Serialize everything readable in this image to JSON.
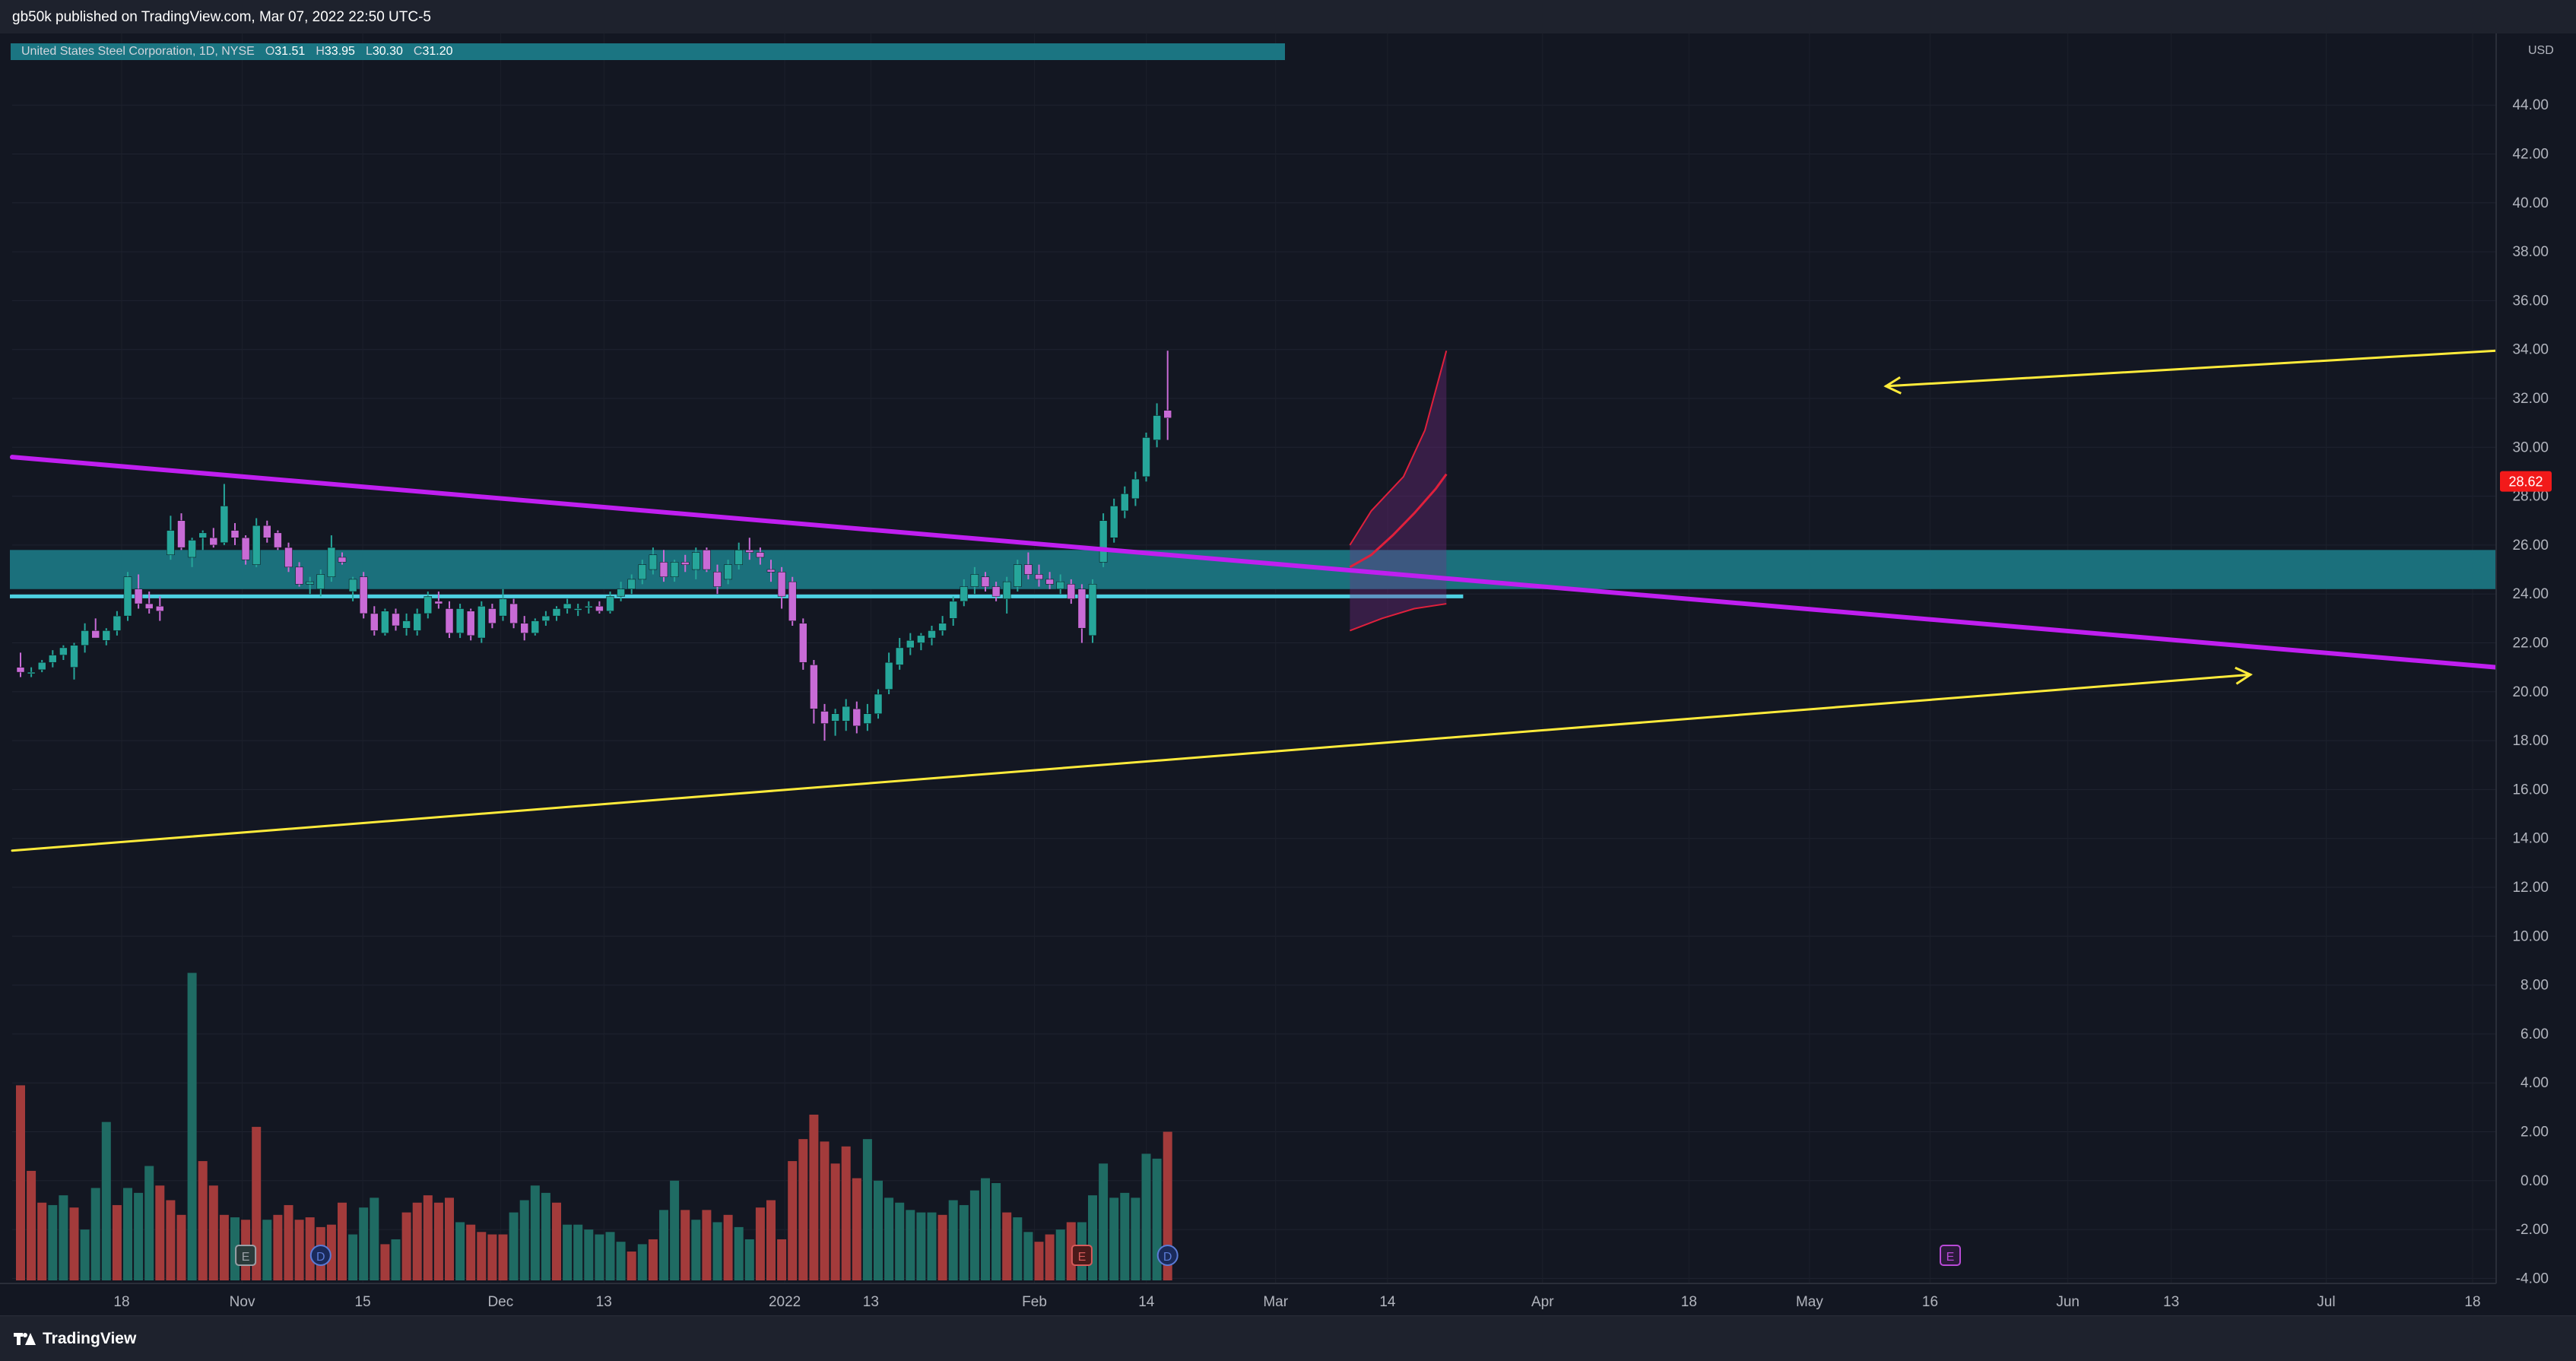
{
  "header": {
    "publish_info": "gb50k published on TradingView.com, Mar 07, 2022 22:50 UTC-5"
  },
  "legend": {
    "symbol": "United States Steel Corporation, 1D, NYSE",
    "o_label": "O",
    "o_value": "31.51",
    "h_label": "H",
    "h_value": "33.95",
    "l_label": "L",
    "l_value": "30.30",
    "c_label": "C",
    "c_value": "31.20"
  },
  "footer": {
    "brand": "TradingView"
  },
  "colors": {
    "background": "#131722",
    "up_candle": "#26a69a",
    "down_candle": "#c86bd6",
    "volume_up": "#1f6b63",
    "volume_down": "#a33b3b",
    "trendline_purple": "#c01ff0",
    "trendline_yellow": "#ffeb3b",
    "zone_teal": "#1b7582",
    "support_line": "#4dd0e1",
    "price_badge": "#f21a1a"
  },
  "chart_data": {
    "type": "candlestick",
    "currency_label": "USD",
    "y_ticks": [
      "44.00",
      "42.00",
      "40.00",
      "38.00",
      "36.00",
      "34.00",
      "32.00",
      "30.00",
      "28.00",
      "26.00",
      "24.00",
      "22.00",
      "20.00",
      "18.00",
      "16.00",
      "14.00",
      "12.00",
      "10.00",
      "8.00",
      "6.00",
      "4.00",
      "2.00",
      "0.00",
      "-2.00",
      "-4.00"
    ],
    "y_tick_values": [
      44,
      42,
      40,
      38,
      36,
      34,
      32,
      30,
      28,
      26,
      24,
      22,
      20,
      18,
      16,
      14,
      12,
      10,
      8,
      6,
      4,
      2,
      0,
      -2,
      -4
    ],
    "ylim": [
      -4.4,
      44.9
    ],
    "x_ticks": [
      {
        "label": "18",
        "date": "2021-10-18"
      },
      {
        "label": "Nov",
        "date": "2021-11-01"
      },
      {
        "label": "15",
        "date": "2021-11-15"
      },
      {
        "label": "Dec",
        "date": "2021-12-01"
      },
      {
        "label": "13",
        "date": "2021-12-13"
      },
      {
        "label": "2022",
        "date": "2022-01-03"
      },
      {
        "label": "13",
        "date": "2022-01-13"
      },
      {
        "label": "Feb",
        "date": "2022-02-01"
      },
      {
        "label": "14",
        "date": "2022-02-14"
      },
      {
        "label": "Mar",
        "date": "2022-03-01"
      },
      {
        "label": "14",
        "date": "2022-03-14"
      },
      {
        "label": "Apr",
        "date": "2022-04-01"
      },
      {
        "label": "18",
        "date": "2022-04-18"
      },
      {
        "label": "May",
        "date": "2022-05-02"
      },
      {
        "label": "16",
        "date": "2022-05-16"
      },
      {
        "label": "Jun",
        "date": "2022-06-01"
      },
      {
        "label": "13",
        "date": "2022-06-13"
      },
      {
        "label": "Jul",
        "date": "2022-07-01"
      },
      {
        "label": "18",
        "date": "2022-07-18"
      }
    ],
    "last_price": "28.62",
    "last_price_value": 28.62,
    "candles": [
      [
        21.0,
        21.6,
        20.6,
        20.8
      ],
      [
        20.8,
        21.0,
        20.6,
        20.8
      ],
      [
        20.9,
        21.3,
        20.8,
        21.2
      ],
      [
        21.2,
        21.7,
        21.0,
        21.5
      ],
      [
        21.5,
        21.9,
        21.3,
        21.8
      ],
      [
        21.0,
        22.0,
        20.5,
        21.9
      ],
      [
        21.9,
        22.8,
        21.6,
        22.5
      ],
      [
        22.5,
        23.0,
        22.2,
        22.2
      ],
      [
        22.1,
        22.6,
        21.9,
        22.5
      ],
      [
        22.5,
        23.3,
        22.3,
        23.1
      ],
      [
        23.1,
        24.9,
        22.9,
        24.7
      ],
      [
        24.2,
        24.8,
        23.4,
        23.6
      ],
      [
        23.6,
        24.1,
        23.2,
        23.4
      ],
      [
        23.5,
        23.9,
        22.9,
        23.3
      ],
      [
        25.6,
        27.2,
        25.4,
        26.6
      ],
      [
        27.0,
        27.3,
        25.8,
        25.9
      ],
      [
        25.5,
        26.3,
        25.1,
        26.2
      ],
      [
        26.3,
        26.6,
        25.8,
        26.5
      ],
      [
        26.3,
        26.7,
        25.9,
        26.0
      ],
      [
        26.1,
        28.5,
        26.0,
        27.6
      ],
      [
        26.6,
        26.9,
        26.0,
        26.3
      ],
      [
        26.3,
        26.4,
        25.2,
        25.4
      ],
      [
        25.2,
        27.1,
        25.1,
        26.8
      ],
      [
        26.8,
        27.0,
        26.1,
        26.3
      ],
      [
        26.5,
        26.6,
        25.8,
        25.9
      ],
      [
        25.9,
        26.1,
        24.9,
        25.1
      ],
      [
        25.1,
        25.3,
        24.3,
        24.4
      ],
      [
        24.4,
        24.7,
        24.0,
        24.5
      ],
      [
        24.2,
        25.0,
        23.9,
        24.8
      ],
      [
        24.7,
        26.4,
        24.5,
        25.9
      ],
      [
        25.5,
        25.7,
        25.2,
        25.3
      ],
      [
        24.1,
        24.7,
        23.7,
        24.6
      ],
      [
        24.7,
        24.9,
        23.0,
        23.2
      ],
      [
        23.2,
        23.5,
        22.3,
        22.5
      ],
      [
        22.4,
        23.4,
        22.3,
        23.3
      ],
      [
        23.2,
        23.4,
        22.5,
        22.7
      ],
      [
        22.6,
        23.2,
        22.3,
        22.9
      ],
      [
        22.5,
        23.4,
        22.3,
        23.2
      ],
      [
        23.2,
        24.1,
        23.0,
        23.9
      ],
      [
        23.7,
        24.1,
        23.4,
        23.6
      ],
      [
        23.4,
        23.7,
        22.2,
        22.4
      ],
      [
        22.4,
        23.6,
        22.2,
        23.4
      ],
      [
        23.3,
        23.4,
        22.1,
        22.3
      ],
      [
        22.2,
        23.7,
        22.0,
        23.5
      ],
      [
        23.4,
        23.6,
        22.6,
        22.8
      ],
      [
        23.1,
        24.2,
        22.9,
        23.8
      ],
      [
        23.6,
        23.8,
        22.6,
        22.8
      ],
      [
        22.8,
        23.1,
        22.1,
        22.4
      ],
      [
        22.4,
        23.0,
        22.3,
        22.9
      ],
      [
        22.9,
        23.3,
        22.7,
        23.1
      ],
      [
        23.1,
        23.5,
        22.9,
        23.4
      ],
      [
        23.4,
        23.8,
        23.2,
        23.6
      ],
      [
        23.4,
        23.6,
        23.1,
        23.4
      ],
      [
        23.5,
        23.7,
        23.2,
        23.5
      ],
      [
        23.5,
        23.7,
        23.2,
        23.3
      ],
      [
        23.3,
        24.1,
        23.2,
        23.9
      ],
      [
        23.9,
        24.5,
        23.7,
        24.2
      ],
      [
        24.2,
        24.8,
        24.0,
        24.6
      ],
      [
        24.6,
        25.4,
        24.4,
        25.2
      ],
      [
        25.0,
        25.9,
        24.8,
        25.6
      ],
      [
        25.3,
        25.8,
        24.5,
        24.7
      ],
      [
        24.7,
        25.4,
        24.5,
        25.3
      ],
      [
        25.3,
        25.6,
        24.9,
        25.2
      ],
      [
        25.0,
        25.9,
        24.6,
        25.7
      ],
      [
        25.8,
        25.9,
        24.9,
        25.0
      ],
      [
        24.9,
        25.2,
        24.0,
        24.3
      ],
      [
        24.6,
        25.4,
        24.4,
        25.2
      ],
      [
        25.2,
        26.1,
        25.0,
        25.8
      ],
      [
        25.8,
        26.3,
        25.4,
        25.7
      ],
      [
        25.7,
        25.9,
        25.2,
        25.5
      ],
      [
        25.0,
        25.4,
        24.5,
        24.9
      ],
      [
        24.9,
        25.1,
        23.4,
        23.9
      ],
      [
        24.5,
        24.7,
        22.7,
        22.9
      ],
      [
        22.8,
        23.0,
        20.9,
        21.2
      ],
      [
        21.1,
        21.3,
        18.7,
        19.3
      ],
      [
        19.2,
        19.5,
        18.0,
        18.7
      ],
      [
        18.8,
        19.3,
        18.2,
        19.1
      ],
      [
        18.8,
        19.7,
        18.4,
        19.4
      ],
      [
        19.3,
        19.6,
        18.3,
        18.6
      ],
      [
        18.7,
        19.5,
        18.4,
        19.1
      ],
      [
        19.1,
        20.1,
        18.9,
        19.9
      ],
      [
        20.1,
        21.6,
        19.9,
        21.2
      ],
      [
        21.1,
        22.2,
        20.9,
        21.8
      ],
      [
        21.8,
        22.4,
        21.5,
        22.1
      ],
      [
        22.0,
        22.4,
        21.7,
        22.3
      ],
      [
        22.2,
        22.7,
        21.9,
        22.5
      ],
      [
        22.5,
        23.1,
        22.3,
        22.8
      ],
      [
        23.0,
        23.9,
        22.7,
        23.7
      ],
      [
        23.7,
        24.6,
        23.5,
        24.3
      ],
      [
        24.3,
        25.1,
        24.0,
        24.8
      ],
      [
        24.7,
        24.9,
        24.1,
        24.3
      ],
      [
        24.3,
        24.5,
        23.7,
        23.9
      ],
      [
        23.8,
        24.7,
        23.2,
        24.5
      ],
      [
        24.3,
        25.4,
        24.1,
        25.2
      ],
      [
        25.2,
        25.7,
        24.6,
        24.8
      ],
      [
        24.8,
        25.2,
        24.3,
        24.6
      ],
      [
        24.6,
        24.9,
        24.2,
        24.4
      ],
      [
        24.2,
        24.8,
        24.0,
        24.5
      ],
      [
        24.4,
        24.6,
        23.6,
        23.8
      ],
      [
        24.2,
        24.4,
        22.0,
        22.6
      ],
      [
        22.3,
        24.6,
        22.0,
        24.4
      ],
      [
        25.3,
        27.3,
        25.1,
        27.0
      ],
      [
        26.3,
        27.9,
        26.1,
        27.6
      ],
      [
        27.4,
        28.4,
        27.1,
        28.1
      ],
      [
        27.9,
        29.0,
        27.6,
        28.7
      ],
      [
        28.8,
        30.6,
        28.6,
        30.4
      ],
      [
        30.3,
        31.8,
        30.0,
        31.3
      ],
      [
        31.51,
        33.95,
        30.3,
        31.2
      ]
    ],
    "volume": [
      [
        3.9,
        "d"
      ],
      [
        0.4,
        "d"
      ],
      [
        -0.9,
        "d"
      ],
      [
        -1.0,
        "u"
      ],
      [
        -0.6,
        "u"
      ],
      [
        -1.1,
        "d"
      ],
      [
        -2.0,
        "u"
      ],
      [
        -0.3,
        "u"
      ],
      [
        2.4,
        "u"
      ],
      [
        -1.0,
        "d"
      ],
      [
        -0.3,
        "u"
      ],
      [
        -0.5,
        "u"
      ],
      [
        0.6,
        "u"
      ],
      [
        -0.2,
        "d"
      ],
      [
        -0.8,
        "d"
      ],
      [
        -1.4,
        "d"
      ],
      [
        8.5,
        "u"
      ],
      [
        0.8,
        "d"
      ],
      [
        -0.2,
        "d"
      ],
      [
        -1.4,
        "d"
      ],
      [
        -1.5,
        "u"
      ],
      [
        -1.6,
        "d"
      ],
      [
        2.2,
        "d"
      ],
      [
        -1.6,
        "u"
      ],
      [
        -1.4,
        "d"
      ],
      [
        -1.0,
        "d"
      ],
      [
        -1.6,
        "d"
      ],
      [
        -1.5,
        "d"
      ],
      [
        -1.9,
        "d"
      ],
      [
        -1.8,
        "d"
      ],
      [
        -0.9,
        "d"
      ],
      [
        -2.2,
        "u"
      ],
      [
        -1.1,
        "u"
      ],
      [
        -0.7,
        "u"
      ],
      [
        -2.6,
        "d"
      ],
      [
        -2.4,
        "u"
      ],
      [
        -1.3,
        "d"
      ],
      [
        -0.9,
        "d"
      ],
      [
        -0.6,
        "d"
      ],
      [
        -0.9,
        "d"
      ],
      [
        -0.7,
        "d"
      ],
      [
        -1.7,
        "u"
      ],
      [
        -1.8,
        "d"
      ],
      [
        -2.1,
        "d"
      ],
      [
        -2.2,
        "d"
      ],
      [
        -2.2,
        "d"
      ],
      [
        -1.3,
        "u"
      ],
      [
        -0.8,
        "u"
      ],
      [
        -0.2,
        "u"
      ],
      [
        -0.5,
        "u"
      ],
      [
        -0.9,
        "d"
      ],
      [
        -1.8,
        "u"
      ],
      [
        -1.8,
        "u"
      ],
      [
        -2.0,
        "u"
      ],
      [
        -2.2,
        "u"
      ],
      [
        -2.1,
        "u"
      ],
      [
        -2.5,
        "u"
      ],
      [
        -2.9,
        "d"
      ],
      [
        -2.6,
        "u"
      ],
      [
        -2.4,
        "d"
      ],
      [
        -1.2,
        "u"
      ],
      [
        0.0,
        "u"
      ],
      [
        -1.2,
        "d"
      ],
      [
        -1.6,
        "u"
      ],
      [
        -1.2,
        "d"
      ],
      [
        -1.7,
        "u"
      ],
      [
        -1.4,
        "d"
      ],
      [
        -1.9,
        "u"
      ],
      [
        -2.4,
        "u"
      ],
      [
        -1.1,
        "d"
      ],
      [
        -0.8,
        "d"
      ],
      [
        -2.4,
        "d"
      ],
      [
        0.8,
        "d"
      ],
      [
        1.7,
        "d"
      ],
      [
        2.7,
        "d"
      ],
      [
        1.6,
        "d"
      ],
      [
        0.7,
        "d"
      ],
      [
        1.4,
        "d"
      ],
      [
        0.1,
        "d"
      ],
      [
        1.7,
        "u"
      ],
      [
        0.0,
        "u"
      ],
      [
        -0.7,
        "u"
      ],
      [
        -0.9,
        "u"
      ],
      [
        -1.2,
        "u"
      ],
      [
        -1.3,
        "u"
      ],
      [
        -1.3,
        "u"
      ],
      [
        -1.4,
        "d"
      ],
      [
        -0.8,
        "u"
      ],
      [
        -1.0,
        "u"
      ],
      [
        -0.4,
        "u"
      ],
      [
        0.1,
        "u"
      ],
      [
        -0.1,
        "u"
      ],
      [
        -1.3,
        "d"
      ],
      [
        -1.5,
        "u"
      ],
      [
        -2.1,
        "u"
      ],
      [
        -2.5,
        "d"
      ],
      [
        -2.2,
        "d"
      ],
      [
        -2.0,
        "u"
      ],
      [
        -1.7,
        "d"
      ],
      [
        -1.7,
        "u"
      ],
      [
        -0.6,
        "u"
      ],
      [
        0.7,
        "u"
      ],
      [
        -0.7,
        "u"
      ],
      [
        -0.5,
        "u"
      ],
      [
        -0.7,
        "u"
      ],
      [
        1.1,
        "u"
      ],
      [
        0.9,
        "u"
      ],
      [
        2.0,
        "d"
      ]
    ],
    "annotations": [
      {
        "kind": "trendline",
        "color": "purple",
        "from": [
          0,
          29.6
        ],
        "to": [
          249,
          21.0
        ]
      },
      {
        "kind": "trendline",
        "color": "yellow",
        "from": [
          0,
          13.5
        ],
        "to": [
          208,
          20.7
        ],
        "arrow": "end"
      },
      {
        "kind": "trendline",
        "color": "yellow",
        "from": [
          174,
          32.5
        ],
        "to": [
          249,
          33.95
        ],
        "arrow": "start"
      },
      {
        "kind": "zone",
        "color": "teal",
        "from_index": 0,
        "to_index": 249,
        "low": 24.2,
        "high": 25.8
      },
      {
        "kind": "hline",
        "color": "cyan",
        "from_index": 0,
        "to_index": 134,
        "value": 23.9
      },
      {
        "kind": "envelope",
        "color": "red",
        "from_index": 124,
        "to_index": 133,
        "upper": [
          [
            124,
            26.0
          ],
          [
            126,
            27.4
          ],
          [
            129,
            28.8
          ],
          [
            131,
            30.7
          ],
          [
            133,
            33.95
          ]
        ],
        "lower": [
          [
            124,
            22.5
          ],
          [
            127,
            23.0
          ],
          [
            130,
            23.4
          ],
          [
            133,
            23.6
          ]
        ],
        "mid": [
          [
            124,
            25.1
          ],
          [
            126,
            25.6
          ],
          [
            128,
            26.4
          ],
          [
            130,
            27.3
          ],
          [
            132,
            28.3
          ],
          [
            133,
            28.9
          ]
        ]
      }
    ],
    "markers": [
      {
        "label": "E",
        "index": 21,
        "color": "gray"
      },
      {
        "label": "D",
        "index": 28,
        "color": "blue"
      },
      {
        "label": "E",
        "index": 99,
        "color": "red"
      },
      {
        "label": "D",
        "index": 107,
        "color": "blue"
      },
      {
        "label": "E",
        "index": 180,
        "color": "purple"
      }
    ]
  }
}
